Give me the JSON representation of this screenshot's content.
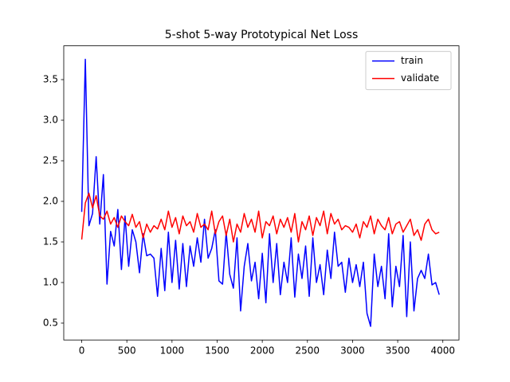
{
  "chart_data": {
    "type": "line",
    "title": "5-shot 5-way Prototypical Net Loss",
    "x": [
      0,
      40,
      80,
      120,
      160,
      200,
      240,
      280,
      320,
      360,
      400,
      440,
      480,
      520,
      560,
      600,
      640,
      680,
      720,
      760,
      800,
      840,
      880,
      920,
      960,
      1000,
      1040,
      1080,
      1120,
      1160,
      1200,
      1240,
      1280,
      1320,
      1360,
      1400,
      1440,
      1480,
      1520,
      1560,
      1600,
      1640,
      1680,
      1720,
      1760,
      1800,
      1840,
      1880,
      1920,
      1960,
      2000,
      2040,
      2080,
      2120,
      2160,
      2200,
      2240,
      2280,
      2320,
      2360,
      2400,
      2440,
      2480,
      2520,
      2560,
      2600,
      2640,
      2680,
      2720,
      2760,
      2800,
      2840,
      2880,
      2920,
      2960,
      3000,
      3040,
      3080,
      3120,
      3160,
      3200,
      3240,
      3280,
      3320,
      3360,
      3400,
      3440,
      3480,
      3520,
      3560,
      3600,
      3640,
      3680,
      3720,
      3760,
      3800,
      3840,
      3880,
      3920,
      3960
    ],
    "series": [
      {
        "name": "train",
        "color": "#0000ff",
        "values": [
          1.87,
          3.75,
          1.7,
          1.85,
          2.55,
          1.72,
          2.33,
          0.98,
          1.63,
          1.45,
          1.9,
          1.16,
          1.82,
          1.2,
          1.65,
          1.5,
          1.12,
          1.6,
          1.33,
          1.35,
          1.3,
          0.83,
          1.42,
          0.9,
          1.62,
          1.0,
          1.52,
          0.92,
          1.48,
          0.95,
          1.45,
          1.2,
          1.55,
          1.25,
          1.78,
          1.3,
          1.42,
          1.65,
          1.02,
          0.98,
          1.62,
          1.1,
          0.93,
          1.55,
          0.65,
          1.2,
          1.48,
          1.02,
          1.25,
          0.8,
          1.36,
          0.75,
          1.6,
          1.0,
          1.48,
          0.85,
          1.25,
          1.0,
          1.55,
          0.82,
          1.35,
          1.05,
          1.45,
          0.83,
          1.55,
          1.0,
          1.22,
          0.85,
          1.4,
          1.05,
          1.62,
          1.2,
          1.25,
          0.88,
          1.3,
          1.0,
          1.22,
          0.95,
          1.25,
          0.62,
          0.46,
          1.35,
          0.95,
          1.2,
          0.8,
          1.6,
          0.7,
          1.2,
          0.95,
          1.58,
          0.58,
          1.5,
          0.65,
          1.05,
          1.15,
          1.05,
          1.35,
          0.97,
          1.0,
          0.85
        ]
      },
      {
        "name": "validate",
        "color": "#ff0000",
        "values": [
          1.53,
          1.98,
          2.1,
          1.92,
          2.07,
          1.82,
          1.78,
          1.88,
          1.72,
          1.8,
          1.68,
          1.82,
          1.75,
          1.7,
          1.84,
          1.68,
          1.75,
          1.55,
          1.72,
          1.62,
          1.7,
          1.66,
          1.78,
          1.65,
          1.88,
          1.68,
          1.8,
          1.6,
          1.82,
          1.7,
          1.75,
          1.62,
          1.85,
          1.68,
          1.72,
          1.65,
          1.88,
          1.6,
          1.75,
          1.82,
          1.58,
          1.78,
          1.5,
          1.72,
          1.62,
          1.85,
          1.68,
          1.78,
          1.62,
          1.88,
          1.55,
          1.75,
          1.7,
          1.82,
          1.6,
          1.78,
          1.68,
          1.8,
          1.62,
          1.85,
          1.5,
          1.75,
          1.65,
          1.82,
          1.58,
          1.8,
          1.7,
          1.88,
          1.6,
          1.85,
          1.72,
          1.78,
          1.65,
          1.7,
          1.68,
          1.62,
          1.72,
          1.55,
          1.75,
          1.68,
          1.82,
          1.6,
          1.78,
          1.7,
          1.65,
          1.8,
          1.6,
          1.72,
          1.75,
          1.62,
          1.7,
          1.78,
          1.58,
          1.65,
          1.52,
          1.72,
          1.78,
          1.65,
          1.6,
          1.62
        ]
      }
    ],
    "xlim": [
      -199,
      4179
    ],
    "xticks": [
      0,
      500,
      1000,
      1500,
      2000,
      2500,
      3000,
      3500,
      4000
    ],
    "ylim": [
      0.292,
      3.916
    ],
    "yticks": [
      {
        "value": 0.5,
        "label": "0.5"
      },
      {
        "value": 1,
        "label": "1.0"
      },
      {
        "value": 1.5,
        "label": "1.5"
      },
      {
        "value": 2,
        "label": "2.0"
      },
      {
        "value": 2.5,
        "label": "2.5"
      },
      {
        "value": 3,
        "label": "3.0"
      },
      {
        "value": 3.5,
        "label": "3.5"
      }
    ],
    "legend": "upper right"
  }
}
